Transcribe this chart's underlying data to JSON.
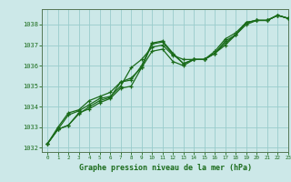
{
  "title": "Graphe pression niveau de la mer (hPa)",
  "background_color": "#cce8e8",
  "grid_color": "#99cccc",
  "line_color": "#1a6b1a",
  "spine_color": "#557755",
  "xlim": [
    -0.5,
    23
  ],
  "ylim": [
    1031.8,
    1038.75
  ],
  "yticks": [
    1032,
    1033,
    1034,
    1035,
    1036,
    1037,
    1038
  ],
  "xticks": [
    0,
    1,
    2,
    3,
    4,
    5,
    6,
    7,
    8,
    9,
    10,
    11,
    12,
    13,
    14,
    15,
    16,
    17,
    18,
    19,
    20,
    21,
    22,
    23
  ],
  "series": [
    [
      1032.2,
      1032.9,
      1033.1,
      1033.7,
      1033.9,
      1034.2,
      1034.4,
      1034.9,
      1035.0,
      1035.9,
      1037.05,
      1037.15,
      1036.55,
      1036.1,
      1036.3,
      1036.3,
      1036.6,
      1037.1,
      1037.5,
      1038.1,
      1038.2,
      1038.2,
      1038.45,
      1038.3
    ],
    [
      1032.2,
      1032.9,
      1033.1,
      1033.65,
      1034.0,
      1034.3,
      1034.45,
      1035.2,
      1035.4,
      1035.9,
      1036.7,
      1036.8,
      1036.2,
      1036.0,
      1036.3,
      1036.3,
      1036.6,
      1037.0,
      1037.5,
      1038.0,
      1038.2,
      1038.2,
      1038.45,
      1038.3
    ],
    [
      1032.2,
      1032.9,
      1033.6,
      1033.8,
      1034.1,
      1034.4,
      1034.5,
      1035.0,
      1035.9,
      1036.3,
      1036.9,
      1037.0,
      1036.5,
      1036.3,
      1036.3,
      1036.3,
      1036.7,
      1037.3,
      1037.6,
      1038.1,
      1038.2,
      1038.2,
      1038.45,
      1038.3
    ],
    [
      1032.2,
      1033.0,
      1033.7,
      1033.85,
      1034.3,
      1034.5,
      1034.7,
      1035.2,
      1035.3,
      1036.0,
      1037.1,
      1037.2,
      1036.6,
      1036.1,
      1036.3,
      1036.3,
      1036.6,
      1037.2,
      1037.5,
      1038.1,
      1038.2,
      1038.2,
      1038.45,
      1038.3
    ]
  ]
}
